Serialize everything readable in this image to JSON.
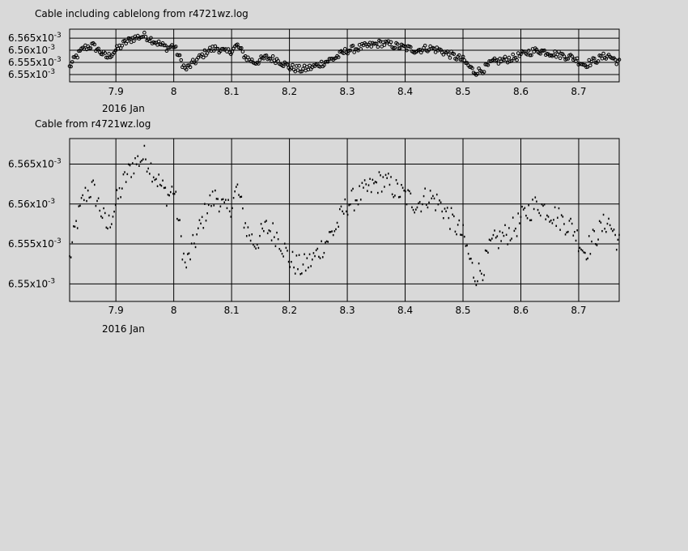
{
  "chart_data": [
    {
      "type": "scatter",
      "title": "Cable including cablelong from r4721wz.log",
      "date_label": "2016 Jan",
      "marker": "circle",
      "xlim": [
        7.82,
        8.77
      ],
      "ylim": [
        0.006547,
        0.0068
      ],
      "xticks": [
        {
          "v": 7.9,
          "label": "7.9"
        },
        {
          "v": 8.0,
          "label": "8"
        },
        {
          "v": 8.1,
          "label": "8.1"
        },
        {
          "v": 8.2,
          "label": "8.2"
        },
        {
          "v": 8.3,
          "label": "8.3"
        },
        {
          "v": 8.4,
          "label": "8.4"
        },
        {
          "v": 8.5,
          "label": "8.5"
        },
        {
          "v": 8.6,
          "label": "8.6"
        },
        {
          "v": 8.7,
          "label": "8.7"
        }
      ],
      "yticks": [
        {
          "v": 0.00655,
          "label": "6.55x10^-3",
          "mant": "6.55",
          "exp": "-3"
        },
        {
          "v": 0.006555,
          "label": "6.555x10^-3",
          "mant": "6.555",
          "exp": "-3"
        },
        {
          "v": 0.00656,
          "label": "6.56x10^-3",
          "mant": "6.56",
          "exp": "-3"
        },
        {
          "v": 0.006565,
          "label": "6.565x10^-3",
          "mant": "6.565",
          "exp": "-3"
        }
      ],
      "grid": true
    },
    {
      "type": "scatter",
      "title": "Cable from r4721wz.log",
      "date_label": "2016 Jan",
      "marker": "dot",
      "xlim": [
        7.82,
        8.77
      ],
      "ylim": [
        0.006548,
        0.0065682
      ],
      "xticks": [
        {
          "v": 7.9,
          "label": "7.9"
        },
        {
          "v": 8.0,
          "label": "8"
        },
        {
          "v": 8.1,
          "label": "8.1"
        },
        {
          "v": 8.2,
          "label": "8.2"
        },
        {
          "v": 8.3,
          "label": "8.3"
        },
        {
          "v": 8.4,
          "label": "8.4"
        },
        {
          "v": 8.5,
          "label": "8.5"
        },
        {
          "v": 8.6,
          "label": "8.6"
        },
        {
          "v": 8.7,
          "label": "8.7"
        }
      ],
      "yticks": [
        {
          "v": 0.00655,
          "label": "6.55x10^-3",
          "mant": "6.55",
          "exp": "-3"
        },
        {
          "v": 0.006555,
          "label": "6.555x10^-3",
          "mant": "6.555",
          "exp": "-3"
        },
        {
          "v": 0.00656,
          "label": "6.56x10^-3",
          "mant": "6.56",
          "exp": "-3"
        },
        {
          "v": 0.006565,
          "label": "6.565x10^-3",
          "mant": "6.565",
          "exp": "-3"
        }
      ],
      "grid": true
    }
  ],
  "series_anchors": {
    "x": [
      7.82,
      7.83,
      7.845,
      7.86,
      7.875,
      7.885,
      7.9,
      7.915,
      7.93,
      7.95,
      7.965,
      7.98,
      7.99,
      8.0,
      8.02,
      8.04,
      8.06,
      8.075,
      8.09,
      8.1,
      8.11,
      8.125,
      8.14,
      8.16,
      8.18,
      8.2,
      8.22,
      8.24,
      8.26,
      8.28,
      8.3,
      8.32,
      8.34,
      8.36,
      8.38,
      8.4,
      8.42,
      8.44,
      8.46,
      8.48,
      8.5,
      8.52,
      8.535,
      8.55,
      8.57,
      8.59,
      8.61,
      8.63,
      8.65,
      8.67,
      8.69,
      8.71,
      8.73,
      8.75,
      8.77
    ],
    "y": [
      0.006553,
      0.006557,
      0.006561,
      0.006562,
      0.006559,
      0.006557,
      0.00656,
      0.006563,
      0.006565,
      0.006566,
      0.006564,
      0.006562,
      0.006561,
      0.006562,
      0.006552,
      0.006556,
      0.00656,
      0.006561,
      0.006559,
      0.00656,
      0.006562,
      0.006557,
      0.006555,
      0.006557,
      0.006556,
      0.006553,
      0.006552,
      0.006553,
      0.006555,
      0.006557,
      0.00656,
      0.006561,
      0.006562,
      0.006563,
      0.006562,
      0.006561,
      0.00656,
      0.006561,
      0.00656,
      0.006558,
      0.006556,
      0.006551,
      0.006552,
      0.006555,
      0.006556,
      0.006557,
      0.006559,
      0.00656,
      0.006559,
      0.006558,
      0.006557,
      0.006554,
      0.006556,
      0.006558,
      0.006555
    ]
  }
}
